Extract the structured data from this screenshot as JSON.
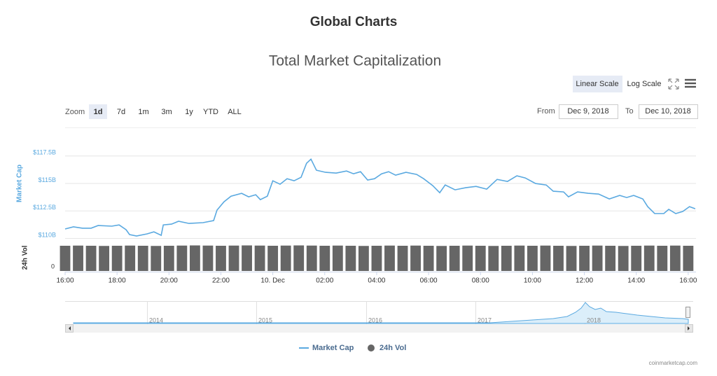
{
  "chart_data": {
    "type": "line",
    "page_title": "Global Charts",
    "title": "Total Market Capitalization",
    "scale_buttons": [
      "Linear Scale",
      "Log Scale"
    ],
    "zoom_label": "Zoom",
    "zoom_buttons": [
      "1d",
      "7d",
      "1m",
      "3m",
      "1y",
      "YTD",
      "ALL"
    ],
    "from_label": "From",
    "from": "Dec 9, 2018",
    "to_label": "To",
    "to": "Dec 10, 2018",
    "y_label": "Market Cap",
    "y2_label": "24h Vol",
    "xlim": [
      0,
      24.3
    ],
    "xticks": [
      {
        "value": 0,
        "label": "16:00"
      },
      {
        "value": 2,
        "label": "18:00"
      },
      {
        "value": 4,
        "label": "20:00"
      },
      {
        "value": 6,
        "label": "22:00"
      },
      {
        "value": 8,
        "label": "10. Dec"
      },
      {
        "value": 10,
        "label": "02:00"
      },
      {
        "value": 12,
        "label": "04:00"
      },
      {
        "value": 14,
        "label": "06:00"
      },
      {
        "value": 16,
        "label": "08:00"
      },
      {
        "value": 18,
        "label": "10:00"
      },
      {
        "value": 20,
        "label": "12:00"
      },
      {
        "value": 22,
        "label": "14:00"
      },
      {
        "value": 24,
        "label": "16:00"
      }
    ],
    "ylim": [
      110,
      120
    ],
    "yticks": [
      {
        "value": 110,
        "label": "$110B"
      },
      {
        "value": 112.5,
        "label": "$112.5B"
      },
      {
        "value": 115,
        "label": "$115B"
      },
      {
        "value": 117.5,
        "label": "$117.5B"
      }
    ],
    "y2lim": [
      0,
      15
    ],
    "y2ticks": [
      0
    ],
    "grid": true,
    "series": [
      {
        "name": "Market Cap",
        "color": "#5aa9e0",
        "x": [
          0,
          0.32,
          0.67,
          1.0,
          1.27,
          1.8,
          2.08,
          2.35,
          2.48,
          2.75,
          3.16,
          3.42,
          3.7,
          3.78,
          4.1,
          4.37,
          4.77,
          5.31,
          5.72,
          5.85,
          6.12,
          6.39,
          6.8,
          7.07,
          7.34,
          7.52,
          7.79,
          8.0,
          8.28,
          8.55,
          8.82,
          9.09,
          9.3,
          9.47,
          9.68,
          10.03,
          10.44,
          10.84,
          11.11,
          11.38,
          11.65,
          11.92,
          12.19,
          12.46,
          12.73,
          13.13,
          13.54,
          13.81,
          14.16,
          14.43,
          14.64,
          15.02,
          15.43,
          15.83,
          16.24,
          16.64,
          17.04,
          17.4,
          17.72,
          18.12,
          18.53,
          18.8,
          19.2,
          19.39,
          19.74,
          20.15,
          20.55,
          20.96,
          21.36,
          21.63,
          21.9,
          22.25,
          22.44,
          22.71,
          23.06,
          23.25,
          23.52,
          23.79,
          24.05,
          24.27
        ],
        "values": [
          110.83,
          111.02,
          110.9,
          110.9,
          111.14,
          111.08,
          111.2,
          110.76,
          110.32,
          110.19,
          110.38,
          110.57,
          110.25,
          111.2,
          111.27,
          111.53,
          111.33,
          111.4,
          111.59,
          112.54,
          113.3,
          113.81,
          114.07,
          113.75,
          113.94,
          113.5,
          113.81,
          115.21,
          114.9,
          115.4,
          115.21,
          115.53,
          116.8,
          117.18,
          116.17,
          115.98,
          115.91,
          116.1,
          115.85,
          116.04,
          115.28,
          115.4,
          115.85,
          116.04,
          115.72,
          115.98,
          115.79,
          115.4,
          114.77,
          114.13,
          114.83,
          114.39,
          114.58,
          114.7,
          114.45,
          115.34,
          115.15,
          115.66,
          115.47,
          114.96,
          114.83,
          114.26,
          114.2,
          113.75,
          114.2,
          114.07,
          114.0,
          113.56,
          113.88,
          113.69,
          113.88,
          113.56,
          112.86,
          112.23,
          112.23,
          112.61,
          112.23,
          112.42,
          112.86,
          112.67
        ]
      },
      {
        "name": "24h Vol",
        "color": "#666666",
        "axis": "y2",
        "x": [
          0,
          0.5,
          1,
          1.5,
          2,
          2.5,
          3,
          3.5,
          4,
          4.5,
          5,
          5.5,
          6,
          6.5,
          7,
          7.5,
          8,
          8.5,
          9,
          9.5,
          10,
          10.5,
          11,
          11.5,
          12,
          12.5,
          13,
          13.5,
          14,
          14.5,
          15,
          15.5,
          16,
          16.5,
          17,
          17.5,
          18,
          18.5,
          19,
          19.5,
          20,
          20.5,
          21,
          21.5,
          22,
          22.5,
          23,
          23.5,
          24
        ],
        "values": [
          14.6,
          14.7,
          14.6,
          14.5,
          14.6,
          14.7,
          14.6,
          14.5,
          14.6,
          14.7,
          14.8,
          14.7,
          14.6,
          14.7,
          14.8,
          14.7,
          14.6,
          14.7,
          14.8,
          14.7,
          14.6,
          14.7,
          14.6,
          14.5,
          14.6,
          14.7,
          14.6,
          14.7,
          14.6,
          14.5,
          14.6,
          14.7,
          14.6,
          14.5,
          14.6,
          14.7,
          14.6,
          14.7,
          14.6,
          14.5,
          14.6,
          14.7,
          14.6,
          14.5,
          14.6,
          14.7,
          14.6,
          14.7,
          14.6
        ]
      }
    ],
    "navigator_labels": [
      "2014",
      "2015",
      "2016",
      "2017",
      "2018"
    ],
    "credit": "coinmarketcap.com"
  }
}
